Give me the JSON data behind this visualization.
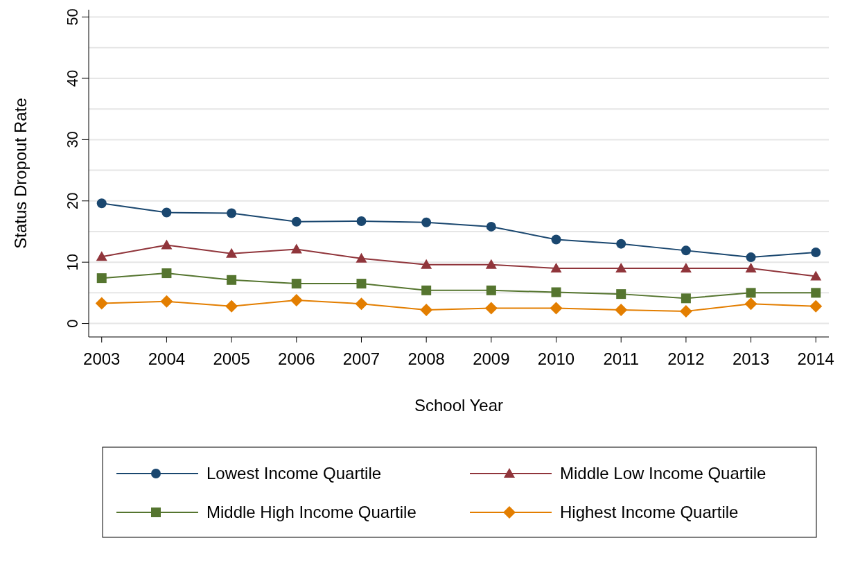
{
  "chart_data": {
    "type": "line",
    "xlabel": "School Year",
    "ylabel": "Status Dropout Rate",
    "x": [
      2003,
      2004,
      2005,
      2006,
      2007,
      2008,
      2009,
      2010,
      2011,
      2012,
      2013,
      2014
    ],
    "xlim": [
      2002.8,
      2014.2
    ],
    "xticks": [
      2003,
      2004,
      2005,
      2006,
      2007,
      2008,
      2009,
      2010,
      2011,
      2012,
      2013,
      2014
    ],
    "ylim": [
      -2.2,
      51.2
    ],
    "yticks": [
      0,
      {
        "value": 5,
        "label": null
      },
      10,
      {
        "value": 15,
        "label": null
      },
      20,
      {
        "value": 25,
        "label": null
      },
      30,
      {
        "value": 35,
        "label": null
      },
      40,
      {
        "value": 45,
        "label": null
      },
      50
    ],
    "grid": "y",
    "legend": "bottom",
    "series": [
      {
        "name": "Lowest Income Quartile",
        "color": "#1a476f",
        "marker": "circle",
        "values": [
          19.6,
          18.1,
          18.0,
          16.6,
          16.7,
          16.5,
          15.8,
          13.7,
          13.0,
          11.9,
          10.8,
          11.6
        ]
      },
      {
        "name": "Middle Low Income Quartile",
        "color": "#90353b",
        "marker": "triangle",
        "values": [
          10.9,
          12.8,
          11.4,
          12.1,
          10.6,
          9.6,
          9.6,
          9.0,
          9.0,
          9.0,
          9.0,
          7.7
        ]
      },
      {
        "name": "Middle High Income Quartile",
        "color": "#55752f",
        "marker": "square",
        "values": [
          7.4,
          8.2,
          7.1,
          6.5,
          6.5,
          5.4,
          5.4,
          5.1,
          4.8,
          4.1,
          5.0,
          5.0
        ]
      },
      {
        "name": "Highest Income Quartile",
        "color": "#e37e00",
        "marker": "diamond",
        "values": [
          3.3,
          3.6,
          2.8,
          3.8,
          3.2,
          2.2,
          2.5,
          2.5,
          2.2,
          2.0,
          3.2,
          2.8
        ]
      }
    ]
  }
}
